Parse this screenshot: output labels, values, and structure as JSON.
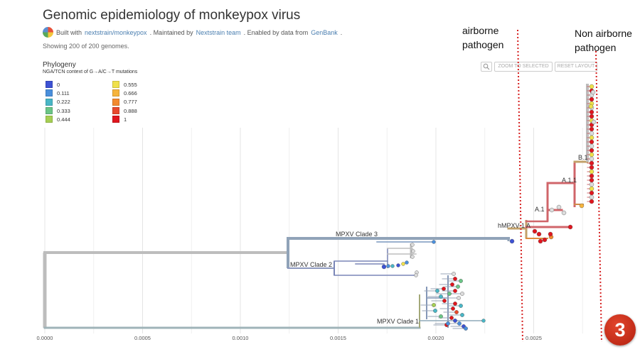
{
  "header": {
    "title": "Genomic epidemiology of monkeypox virus",
    "built_with_prefix": "Built with",
    "built_with_link": "nextstrain/monkeypox",
    "maintained_prefix": ". Maintained by",
    "maintained_link": "Nextstrain team",
    "enabled_prefix": ". Enabled by data from",
    "enabled_link": "GenBank",
    "end_punct": ".",
    "genome_count": "Showing 200 of 200 genomes."
  },
  "panel": {
    "title": "Phylogeny",
    "search_icon": "magnifier-icon",
    "zoom_label": "ZOOM TO SELECTED",
    "reset_label": "RESET LAYOUT"
  },
  "legend": {
    "title": "NGA/TCN context of G→A/C→T mutations",
    "items": [
      {
        "label": "0",
        "color": "#3d52d4"
      },
      {
        "label": "0.111",
        "color": "#4a8fdc"
      },
      {
        "label": "0.222",
        "color": "#49b6c6"
      },
      {
        "label": "0.333",
        "color": "#6bc586"
      },
      {
        "label": "0.444",
        "color": "#a6cf53"
      },
      {
        "label": "0.555",
        "color": "#f0e14a"
      },
      {
        "label": "0.666",
        "color": "#f6b43c"
      },
      {
        "label": "0.777",
        "color": "#f38a2e"
      },
      {
        "label": "0.888",
        "color": "#e8492d"
      },
      {
        "label": "1",
        "color": "#e0161e"
      }
    ]
  },
  "axis": {
    "ticks": [
      {
        "label": "0.0000",
        "value": 0.0
      },
      {
        "label": "0.0005",
        "value": 0.0005
      },
      {
        "label": "0.0010",
        "value": 0.001
      },
      {
        "label": "0.0015",
        "value": 0.0015
      },
      {
        "label": "0.0020",
        "value": 0.002
      },
      {
        "label": "0.0025",
        "value": 0.0025
      }
    ]
  },
  "clades": {
    "clade3": "MPXV Clade 3",
    "clade2": "MPXV Clade 2",
    "clade1": "MPXV Clade 1",
    "hmpxv": "hMPXV-1 A",
    "a1": "A.1",
    "a11": "A.1.1",
    "b1": "B.1"
  },
  "annotations": {
    "airborne_line1": "airborne",
    "airborne_line2": "pathogen",
    "nonairborne_line1": "Non airborne",
    "nonairborne_line2": "pathogen",
    "badge": "3"
  },
  "colors": {
    "annotation_line": "#d62020",
    "branch_grey": "#bdbdbd",
    "branch_slate": "#8a9bb0",
    "branch_red": "#d0656a"
  }
}
